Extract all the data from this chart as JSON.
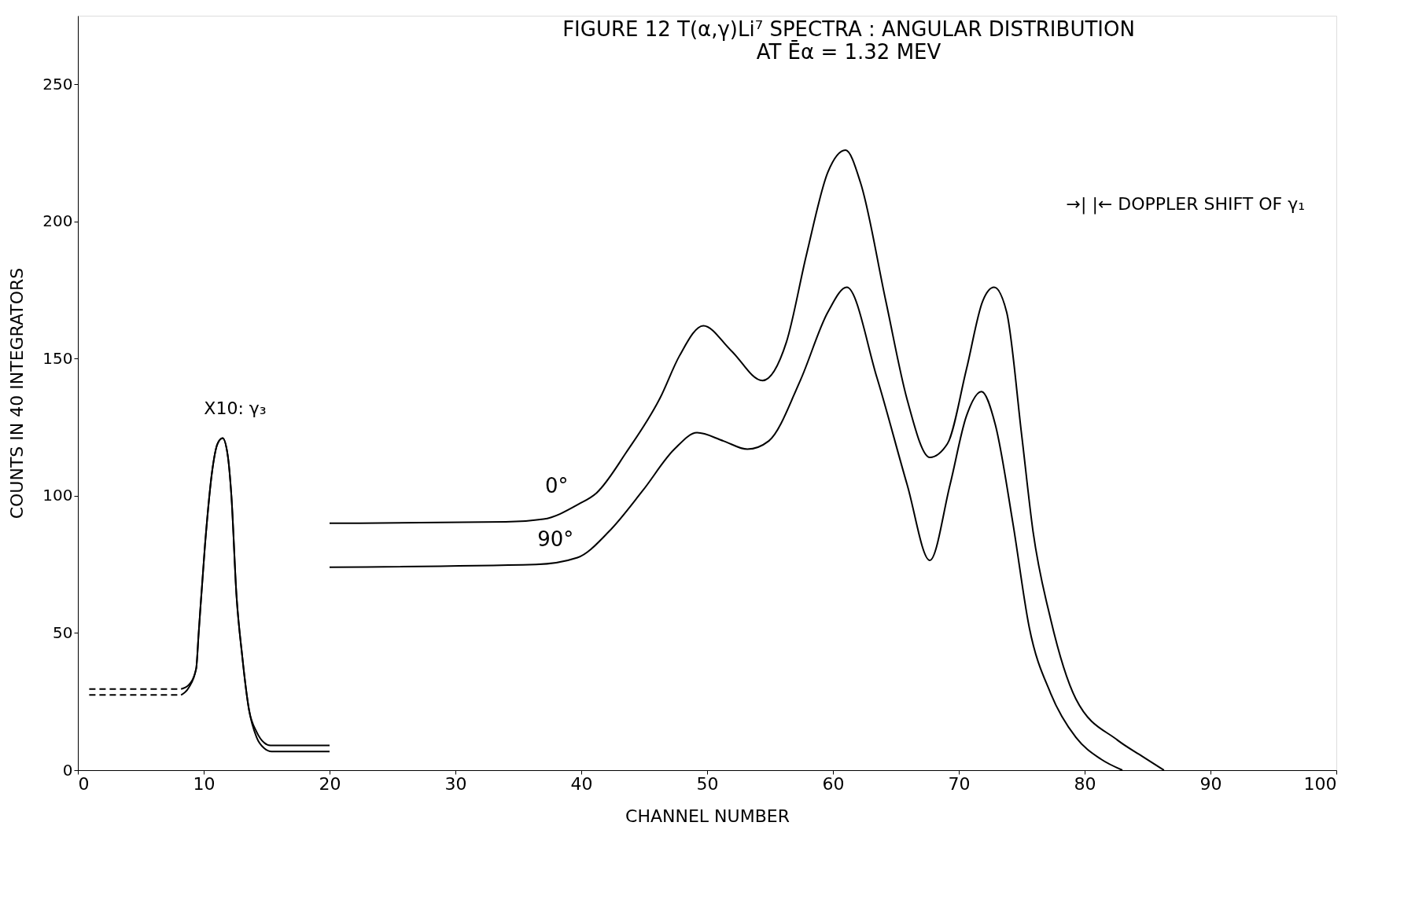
{
  "chart_data": {
    "type": "line",
    "title": "FIGURE 12    T(α,γ)Li⁷ SPECTRA : ANGULAR DISTRIBUTION",
    "subtitle": "AT Ēα = 1.32 MEV",
    "xlabel": "CHANNEL NUMBER",
    "ylabel": "COUNTS IN 40 INTEGRATORS",
    "xlim": [
      0,
      100
    ],
    "ylim": [
      0,
      275
    ],
    "xticks": [
      0,
      10,
      20,
      30,
      40,
      50,
      60,
      70,
      80,
      90,
      100
    ],
    "yticks": [
      0,
      50,
      100,
      150,
      200,
      250
    ],
    "marker": "none",
    "series": [
      {
        "name": "0°",
        "color": "#000000",
        "line_style": "solid",
        "x": [
          20,
          34,
          37,
          39.8,
          41.2,
          43.6,
          46.3,
          47.8,
          49.7,
          51.9,
          54.4,
          56.3,
          57.9,
          59.6,
          61,
          62.2,
          64.2,
          65.9,
          67.7,
          69.1,
          70.6,
          71.9,
          72.8,
          73.8,
          75,
          75.9,
          77.3,
          79.3,
          82.6,
          84.6,
          86.3
        ],
        "values": [
          90,
          90.5,
          91.5,
          97,
          101,
          116,
          136,
          151,
          162,
          153,
          142,
          156,
          188,
          218,
          226,
          214,
          171,
          135,
          114,
          119,
          146,
          171,
          176,
          167,
          122,
          87,
          55,
          26,
          11,
          5,
          0
        ]
      },
      {
        "name": "90°",
        "color": "#000000",
        "line_style": "solid",
        "x": [
          20,
          36.4,
          39.7,
          42.2,
          44.9,
          47.4,
          49.2,
          51.3,
          53.2,
          54.9,
          57.4,
          59.6,
          61.1,
          63.5,
          65.9,
          67.7,
          69.3,
          70.6,
          71.8,
          72.9,
          74.3,
          75.6,
          77.3,
          79.3,
          81.3,
          83
        ],
        "values": [
          74,
          75,
          77.5,
          87,
          102,
          117,
          123,
          120,
          117,
          120,
          142,
          167,
          176,
          143,
          104,
          76.5,
          104,
          129,
          138,
          126,
          90,
          52,
          28,
          12,
          4,
          0
        ]
      },
      {
        "color": "#000000",
        "line_style": "solid",
        "x": [
          8.2,
          8.8,
          9.4,
          9.6,
          10.1,
          10.7,
          11.1,
          11.5,
          11.9,
          12.2,
          12.6,
          13.05,
          13.6,
          14.2,
          14.8,
          15.3,
          20
        ],
        "values": [
          29.6,
          31,
          37,
          50,
          82,
          110,
          119,
          121,
          115,
          100,
          64,
          42,
          22,
          14,
          10,
          9,
          9
        ]
      },
      {
        "color": "#000000",
        "line_style": "solid",
        "x": [
          8.2,
          8.8,
          9.4,
          9.6,
          10.1,
          10.7,
          11.1,
          11.5,
          11.9,
          12.2,
          12.6,
          13.05,
          13.6,
          14.2,
          14.8,
          15.4,
          20
        ],
        "values": [
          27.4,
          30,
          37,
          50,
          82,
          110,
          119,
          121,
          115,
          100,
          64,
          42,
          22,
          12,
          8,
          6.8,
          6.8
        ]
      },
      {
        "color": "#000000",
        "line_style": "dashed",
        "x": [
          0.9,
          8.2
        ],
        "values": [
          29.6,
          29.6
        ]
      },
      {
        "color": "#000000",
        "line_style": "dashed",
        "x": [
          0.9,
          8.2
        ],
        "values": [
          27.4,
          27.4
        ]
      }
    ],
    "annotations": [
      "X10: γ₃",
      "→| |← DOPPLER SHIFT OF γ₁"
    ]
  }
}
